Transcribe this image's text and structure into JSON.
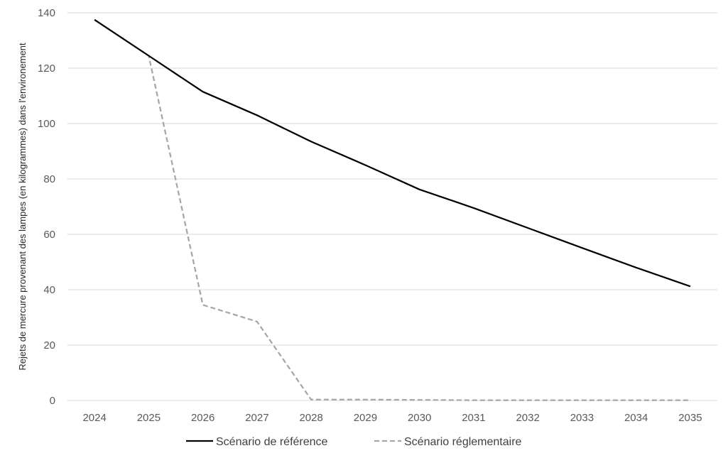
{
  "chart_data": {
    "type": "line",
    "title": "",
    "xlabel": "",
    "ylabel": "Rejets de mercure provenant des lampes (en kilogrammes) dans l'environement",
    "x": [
      "2024",
      "2025",
      "2026",
      "2027",
      "2028",
      "2029",
      "2030",
      "2031",
      "2032",
      "2033",
      "2034",
      "2035"
    ],
    "ylim": [
      0,
      140
    ],
    "yticks": [
      "0",
      "20",
      "40",
      "60",
      "80",
      "100",
      "120",
      "140"
    ],
    "grid": "horizontal",
    "legend_position": "bottom",
    "series": [
      {
        "name": "Scénario de référence",
        "color": "#000000",
        "style": "solid",
        "values": [
          137.5,
          124.5,
          111.5,
          103,
          93.5,
          85,
          76.2,
          69.5,
          62.3,
          55.1,
          48,
          41.2
        ]
      },
      {
        "name": "Scénario réglementaire",
        "color": "#a6a6a6",
        "style": "dashed",
        "values": [
          137.5,
          124.5,
          34.5,
          28.5,
          0.3,
          0.3,
          0.2,
          0.1,
          0.1,
          0.1,
          0.1,
          0.1
        ]
      }
    ]
  }
}
